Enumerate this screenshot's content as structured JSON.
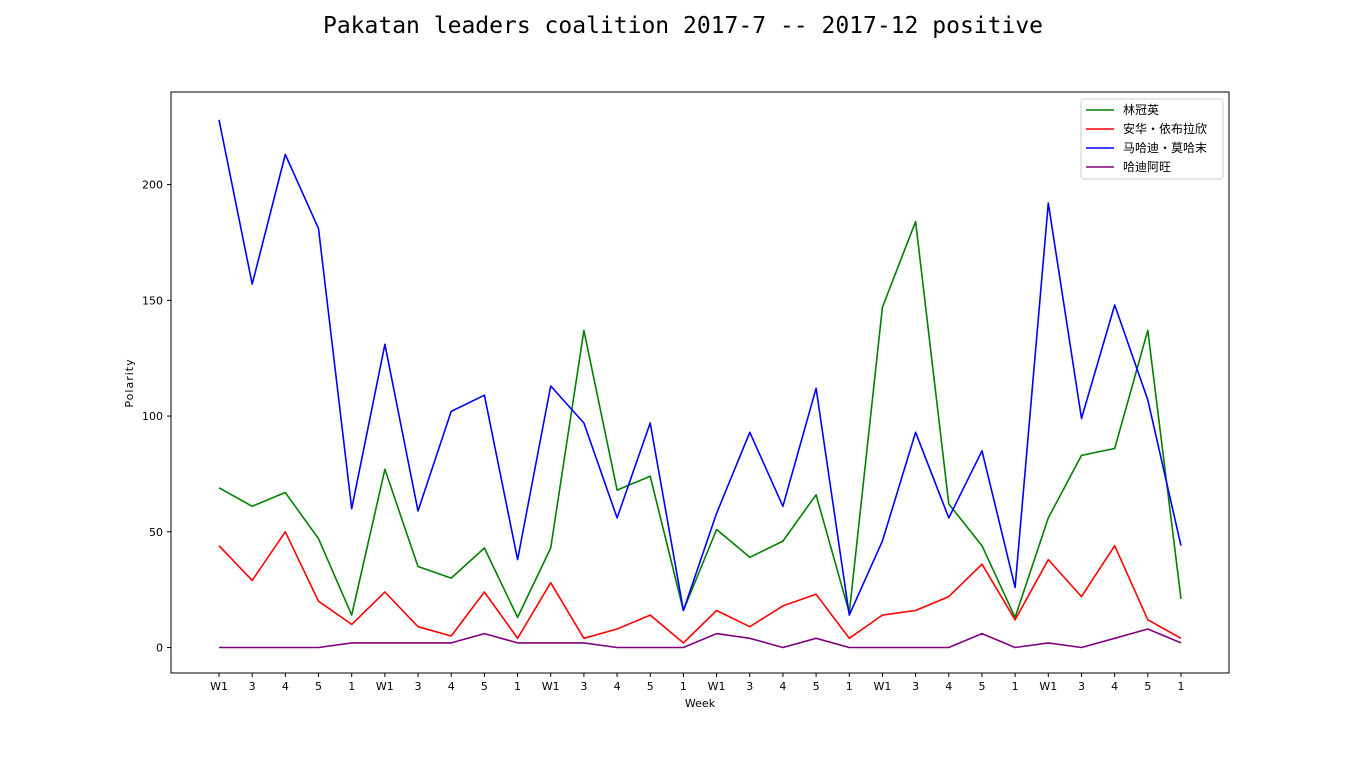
{
  "chart_data": {
    "type": "line",
    "title": "Pakatan leaders coalition 2017-7 -- 2017-12 positive",
    "xlabel": "Week",
    "ylabel": "Polarity",
    "ylim": [
      -11,
      240
    ],
    "yticks": [
      0,
      50,
      100,
      150,
      200
    ],
    "grid": false,
    "legend_position": "top-right",
    "categories": [
      "W1",
      "3",
      "4",
      "5",
      "1",
      "W1",
      "3",
      "4",
      "5",
      "1",
      "W1",
      "3",
      "4",
      "5",
      "1",
      "W1",
      "3",
      "4",
      "5",
      "1",
      "W1",
      "3",
      "4",
      "5",
      "1",
      "W1",
      "3",
      "4",
      "5",
      "1"
    ],
    "series": [
      {
        "name": "林冠英",
        "color": "#008000",
        "values": [
          69,
          61,
          67,
          47,
          14,
          77,
          35,
          30,
          43,
          13,
          43,
          137,
          68,
          74,
          16,
          51,
          39,
          46,
          66,
          15,
          147,
          184,
          62,
          44,
          13,
          56,
          83,
          86,
          137,
          21
        ]
      },
      {
        "name": "安华・依布拉欣",
        "color": "#ff0000",
        "values": [
          44,
          29,
          50,
          20,
          10,
          24,
          9,
          5,
          24,
          4,
          28,
          4,
          8,
          14,
          2,
          16,
          9,
          18,
          23,
          4,
          14,
          16,
          22,
          36,
          12,
          38,
          22,
          44,
          12,
          4
        ]
      },
      {
        "name": "马哈迪・莫哈末",
        "color": "#0000ff",
        "values": [
          228,
          157,
          213,
          181,
          60,
          131,
          59,
          102,
          109,
          38,
          113,
          97,
          56,
          97,
          16,
          58,
          93,
          61,
          112,
          14,
          46,
          93,
          56,
          85,
          26,
          192,
          99,
          148,
          107,
          44
        ]
      },
      {
        "name": "哈迪阿旺",
        "color": "#800080",
        "values": [
          0,
          0,
          0,
          0,
          2,
          2,
          2,
          2,
          6,
          2,
          2,
          2,
          0,
          0,
          0,
          6,
          4,
          0,
          4,
          0,
          0,
          0,
          0,
          6,
          0,
          2,
          0,
          4,
          8,
          2
        ]
      }
    ]
  }
}
